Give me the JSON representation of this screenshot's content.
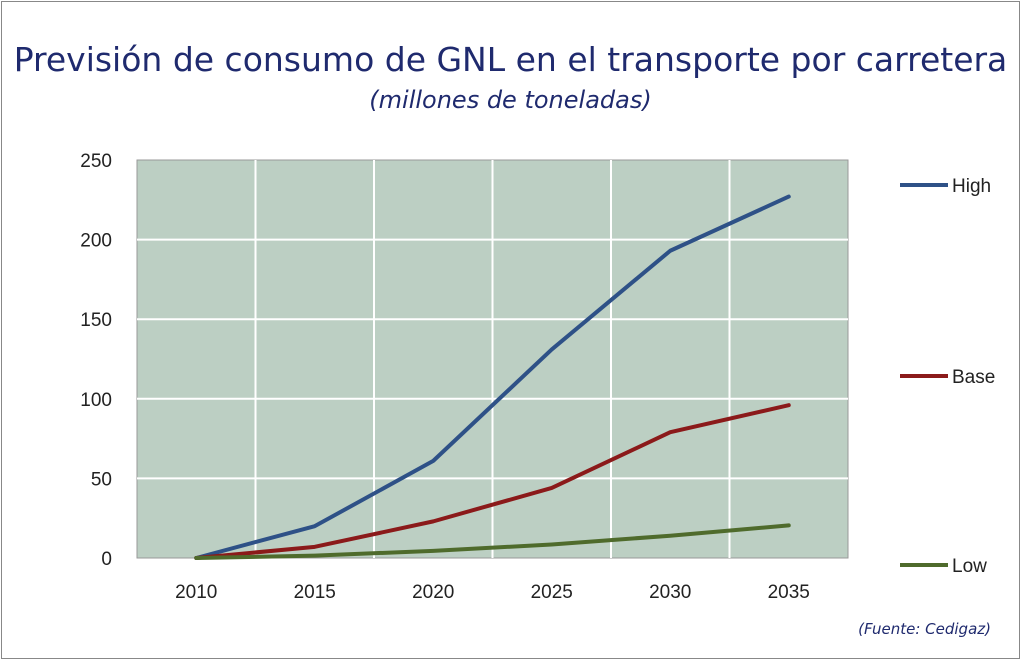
{
  "chart_data": {
    "type": "line",
    "title": "Previsión de consumo de GNL en el transporte por carretera",
    "subtitle": "(millones de toneladas)",
    "source": "(Fuente: Cedigaz)",
    "x": [
      2010,
      2015,
      2020,
      2025,
      2030,
      2035
    ],
    "xticks": [
      "2010",
      "2015",
      "2020",
      "2025",
      "2030",
      "2035"
    ],
    "yticks": [
      "0",
      "50",
      "100",
      "150",
      "200",
      "250"
    ],
    "ylim": [
      0,
      250
    ],
    "xlim": [
      2007.5,
      2037.5
    ],
    "grid": true,
    "legend_position": "right",
    "plot_background": "#bccfc3",
    "series": [
      {
        "name": "High",
        "color": "#2e5187",
        "values": [
          0,
          20,
          61,
          131,
          193,
          227
        ]
      },
      {
        "name": "Base",
        "color": "#8b1a1a",
        "values": [
          0,
          7,
          23,
          44,
          79,
          96
        ]
      },
      {
        "name": "Low",
        "color": "#4f6b2c",
        "values": [
          0,
          1.5,
          4.5,
          8.5,
          14,
          20.5
        ]
      }
    ]
  }
}
